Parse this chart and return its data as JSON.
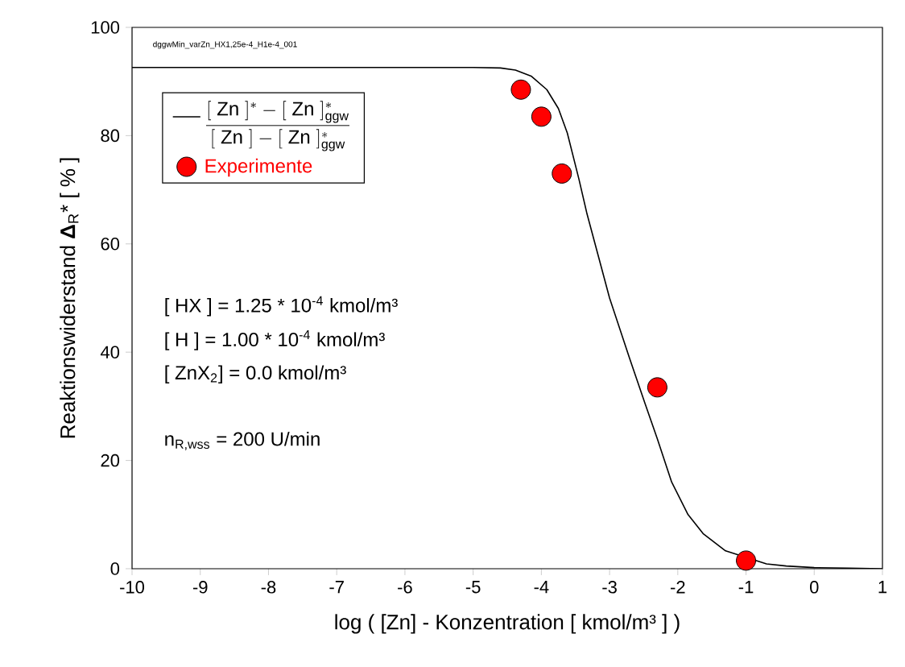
{
  "chart_data": {
    "type": "line",
    "xlabel": "log ( [Zn] - Konzentration   [ kmol/m³ ] )",
    "ylabel": "Reaktionswiderstand **Δ**$_{R}$* [ % ]",
    "annotations": [
      "dggwMin_varZn_HX1,25e-4_H1e-4_001",
      "[ HX ] = 1.25 * 10$^{-4}$ kmol/m³",
      "[ H ] = 1.00 * 10$^{-4}$ kmol/m³",
      "[ ZnX$_{2}$] = 0.0 kmol/m³",
      "n$_{R,wss}$ = 200 U/min"
    ],
    "xlim": [
      -10,
      1
    ],
    "ylim": [
      0,
      100
    ],
    "xticks": [
      -10,
      -9,
      -8,
      -7,
      -6,
      -5,
      -4,
      -3,
      -2,
      -1,
      0,
      1
    ],
    "yticks": [
      0,
      20,
      40,
      60,
      80,
      100
    ],
    "grid": false,
    "legend": "top left",
    "series": [
      {
        "name": "\\frac{[\\ \\mathrm{Zn}\\ ]^{*} - [\\ \\mathrm{Zn}\\ ]^{*}_{\\mathrm{ggw}}}{[\\ \\mathrm{Zn}\\ ] - [\\ \\mathrm{Zn}\\ ]^{*}_{\\mathrm{ggw}}}",
        "color": "#000000",
        "marker": "none",
        "line_style": "solid",
        "x": [
          -10,
          -7,
          -5,
          -4.6,
          -4.38,
          -4.15,
          -3.92,
          -3.75,
          -3.62,
          -3.45,
          -3.33,
          -3.17,
          -3.0,
          -2.71,
          -2.48,
          -2.3,
          -2.09,
          -1.85,
          -1.63,
          -1.3,
          -1,
          -0.7,
          -0.41,
          0,
          0.5,
          1
        ],
        "values": [
          92.6,
          92.6,
          92.6,
          92.5,
          92.1,
          91,
          88.5,
          85,
          80.5,
          72,
          65.5,
          58,
          50,
          39,
          30.5,
          24,
          16,
          10,
          6.5,
          3.3,
          null,
          0.9,
          0.5,
          0.2,
          0.1,
          0
        ]
      },
      {
        "name": "Experimente",
        "type": "scatter",
        "color": "#ff0000",
        "marker": "circle",
        "x": [
          -4.3,
          -4.0,
          -3.7,
          -2.3,
          -1.0
        ],
        "values": [
          88.5,
          83.5,
          73,
          33.5,
          1.5
        ]
      }
    ]
  }
}
